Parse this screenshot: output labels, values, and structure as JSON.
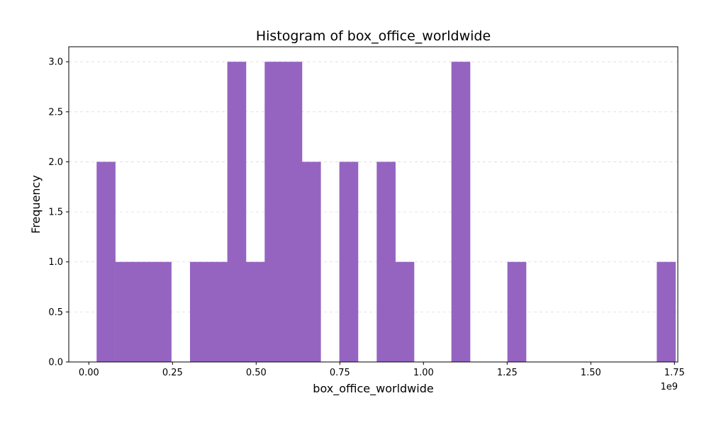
{
  "chart_data": {
    "type": "bar",
    "subtype": "histogram",
    "title": "Histogram of box_office_worldwide",
    "xlabel": "box_office_worldwide",
    "ylabel": "Frequency",
    "x_offset_text": "1e9",
    "xlim": [
      -0.06,
      1.76
    ],
    "ylim": [
      0,
      3.15
    ],
    "x_ticks": [
      0.0,
      0.25,
      0.5,
      0.75,
      1.0,
      1.25,
      1.5,
      1.75
    ],
    "x_tick_labels": [
      "0.00",
      "0.25",
      "0.50",
      "0.75",
      "1.00",
      "1.25",
      "1.50",
      "1.75"
    ],
    "y_ticks": [
      0.0,
      0.5,
      1.0,
      1.5,
      2.0,
      2.5,
      3.0
    ],
    "y_tick_labels": [
      "0.0",
      "0.5",
      "1.0",
      "1.5",
      "2.0",
      "2.5",
      "3.0"
    ],
    "grid": {
      "y": true,
      "x": false,
      "style": "dashed"
    },
    "bin_start": 0.0232,
    "bin_width": 0.0558,
    "counts": [
      2,
      1,
      1,
      1,
      0,
      1,
      1,
      3,
      1,
      3,
      3,
      2,
      0,
      2,
      0,
      2,
      1,
      0,
      0,
      3,
      0,
      0,
      1,
      0,
      0,
      0,
      0,
      0,
      0,
      0,
      1
    ],
    "bar_color": "#9564c1"
  }
}
